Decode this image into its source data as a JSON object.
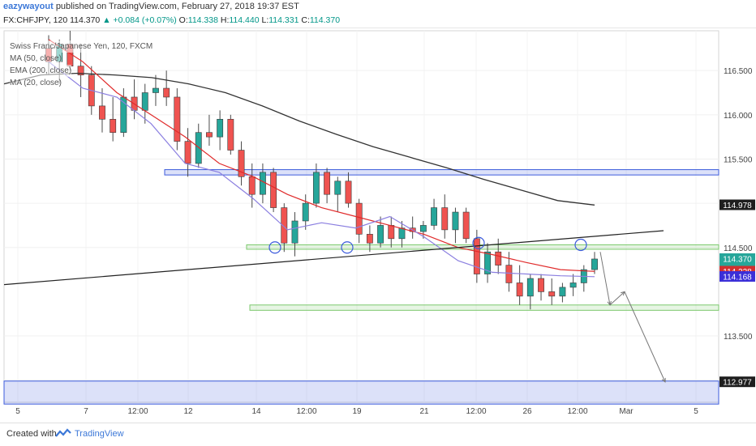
{
  "header": {
    "author": "eazywayout",
    "published_text": "published on TradingView.com, February 27, 2018 19:37 EST"
  },
  "quote": {
    "symbol": "FX:CHFJPY, 120",
    "last": "114.370",
    "change": "▲ +0.084 (+0.07%)",
    "o_label": "O:",
    "o_value": "114.338",
    "h_label": "H:",
    "h_value": "114.440",
    "l_label": "L:",
    "l_value": "114.331",
    "c_label": "C:",
    "c_value": "114.370"
  },
  "legend": {
    "title": "Swiss Franc/Japanese Yen, 120, FXCM",
    "ma50": "MA (50, close)",
    "ema200": "EMA (200, close)",
    "ma20": "MA (20, close)"
  },
  "footer": {
    "created_with": "Created with",
    "brand": "TradingView"
  },
  "colors": {
    "up_candle": "#26a69a",
    "down_candle": "#ef5350",
    "ma50": "#333333",
    "ema200_red": "#e02b2b",
    "ma20": "#8b7fe0",
    "zone_blue": "#3c5bdc",
    "zone_green": "#7bc86c"
  },
  "chart_data": {
    "type": "candlestick",
    "title": "Swiss Franc/Japanese Yen, 120, FXCM",
    "ylim": [
      112.75,
      116.95
    ],
    "price_ticks": [
      "116.500",
      "116.000",
      "115.500",
      "115.000",
      "114.500",
      "113.500",
      "113.000"
    ],
    "x_tick_labels": [
      "5",
      "7",
      "12:00",
      "12",
      "14",
      "12:00",
      "19",
      "21",
      "12:00",
      "26",
      "12:00",
      "Mar",
      "5"
    ],
    "price_labels": [
      {
        "value": 114.978,
        "text": "114.978",
        "style": "dark"
      },
      {
        "value": 114.37,
        "text": "114.370",
        "style": "teal"
      },
      {
        "value": 114.26,
        "text": "01:22:29",
        "style": "teal"
      },
      {
        "value": 114.228,
        "text": "114.228",
        "style": "red"
      },
      {
        "value": 114.168,
        "text": "114.168",
        "style": "purple"
      },
      {
        "value": 112.977,
        "text": "112.977",
        "style": "dark"
      }
    ],
    "zones": [
      {
        "type": "resistance",
        "color": "blue",
        "from": 115.32,
        "to": 115.38
      },
      {
        "type": "resistance",
        "color": "green",
        "from": 114.48,
        "to": 114.53
      },
      {
        "type": "support",
        "color": "green",
        "from": 113.79,
        "to": 113.85
      },
      {
        "type": "target",
        "color": "blue",
        "from": 112.73,
        "to": 112.99
      }
    ],
    "trendline": {
      "from_price": 114.08,
      "to_price": 114.69
    },
    "series": [
      {
        "name": "MA (50, close)",
        "values": [
          116.35,
          116.45,
          116.47,
          116.45,
          116.42,
          116.35,
          116.25,
          116.1,
          115.93,
          115.78,
          115.64,
          115.52,
          115.4,
          115.27,
          115.15,
          115.03,
          114.98
        ]
      },
      {
        "name": "EMA (200, close)",
        "values": [
          116.85,
          116.6,
          116.25,
          116.0,
          115.75,
          115.45,
          115.3,
          115.1,
          114.95,
          114.85,
          114.75,
          114.65,
          114.5,
          114.42,
          114.33,
          114.25,
          114.23
        ]
      },
      {
        "name": "MA (20, close)",
        "values": [
          116.6,
          116.3,
          116.2,
          115.9,
          115.45,
          115.35,
          115.05,
          114.7,
          114.78,
          114.72,
          114.85,
          114.62,
          114.35,
          114.22,
          114.2,
          114.18,
          114.17
        ]
      }
    ],
    "candles": [
      [
        116.75,
        116.9,
        116.45,
        116.6
      ],
      [
        116.6,
        116.85,
        116.35,
        116.8
      ],
      [
        116.8,
        116.95,
        116.5,
        116.55
      ],
      [
        116.55,
        116.8,
        116.2,
        116.45
      ],
      [
        116.45,
        116.55,
        116.0,
        116.1
      ],
      [
        116.1,
        116.3,
        115.8,
        115.95
      ],
      [
        115.95,
        116.2,
        115.7,
        115.8
      ],
      [
        115.8,
        116.3,
        115.75,
        116.2
      ],
      [
        116.2,
        116.4,
        115.95,
        116.05
      ],
      [
        116.05,
        116.35,
        115.9,
        116.25
      ],
      [
        116.25,
        116.45,
        116.1,
        116.3
      ],
      [
        116.3,
        116.5,
        116.1,
        116.2
      ],
      [
        116.2,
        116.3,
        115.6,
        115.7
      ],
      [
        115.7,
        115.85,
        115.3,
        115.45
      ],
      [
        115.45,
        115.9,
        115.4,
        115.8
      ],
      [
        115.8,
        116.0,
        115.65,
        115.75
      ],
      [
        115.75,
        116.05,
        115.6,
        115.95
      ],
      [
        115.95,
        116.0,
        115.55,
        115.6
      ],
      [
        115.6,
        115.7,
        115.2,
        115.3
      ],
      [
        115.3,
        115.45,
        114.95,
        115.1
      ],
      [
        115.1,
        115.45,
        115.0,
        115.35
      ],
      [
        115.35,
        115.4,
        114.9,
        114.95
      ],
      [
        114.95,
        115.0,
        114.45,
        114.55
      ],
      [
        114.55,
        114.9,
        114.4,
        114.8
      ],
      [
        114.8,
        115.1,
        114.7,
        115.0
      ],
      [
        115.0,
        115.45,
        114.95,
        115.35
      ],
      [
        115.35,
        115.4,
        115.0,
        115.1
      ],
      [
        115.1,
        115.3,
        114.9,
        115.25
      ],
      [
        115.25,
        115.35,
        114.95,
        115.0
      ],
      [
        115.0,
        115.05,
        114.55,
        114.65
      ],
      [
        114.65,
        114.75,
        114.45,
        114.55
      ],
      [
        114.55,
        114.85,
        114.5,
        114.75
      ],
      [
        114.75,
        114.85,
        114.5,
        114.6
      ],
      [
        114.6,
        114.8,
        114.5,
        114.72
      ],
      [
        114.72,
        114.85,
        114.6,
        114.68
      ],
      [
        114.68,
        114.8,
        114.6,
        114.75
      ],
      [
        114.75,
        115.05,
        114.7,
        114.95
      ],
      [
        114.95,
        115.1,
        114.6,
        114.7
      ],
      [
        114.7,
        114.95,
        114.55,
        114.9
      ],
      [
        114.9,
        114.95,
        114.55,
        114.6
      ],
      [
        114.6,
        114.7,
        114.1,
        114.2
      ],
      [
        114.2,
        114.55,
        114.1,
        114.45
      ],
      [
        114.45,
        114.6,
        114.2,
        114.3
      ],
      [
        114.3,
        114.45,
        114.0,
        114.1
      ],
      [
        114.1,
        114.3,
        113.85,
        113.95
      ],
      [
        113.95,
        114.2,
        113.8,
        114.15
      ],
      [
        114.15,
        114.2,
        113.9,
        114.0
      ],
      [
        114.0,
        114.15,
        113.85,
        113.95
      ],
      [
        113.95,
        114.1,
        113.88,
        114.05
      ],
      [
        114.05,
        114.2,
        113.95,
        114.1
      ],
      [
        114.1,
        114.3,
        114.0,
        114.25
      ],
      [
        114.25,
        114.45,
        114.2,
        114.37
      ]
    ],
    "projection_path": [
      [
        114.45,
        "start"
      ],
      [
        113.85,
        "down"
      ],
      [
        114.0,
        "bounce"
      ],
      [
        112.98,
        "target"
      ]
    ]
  }
}
